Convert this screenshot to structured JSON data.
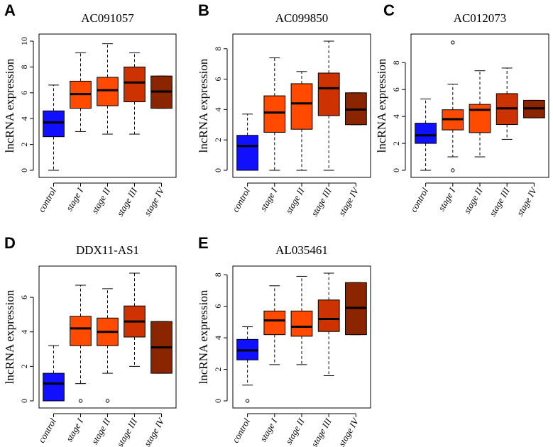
{
  "chart_data": [
    {
      "type": "box",
      "panel": "A",
      "title": "AC091057",
      "ylabel": "lncRNA expression",
      "xlabel": "",
      "ylim": [
        0,
        10
      ],
      "yticks": [
        0,
        2,
        4,
        6,
        8,
        10
      ],
      "categories": [
        "control",
        "stage I",
        "stage II",
        "stage III",
        "stage IV"
      ],
      "colors": [
        "#1010ff",
        "#ff4a00",
        "#ff4a00",
        "#cc3300",
        "#8b2500"
      ],
      "boxes": [
        {
          "min": 0.0,
          "q1": 2.6,
          "median": 3.7,
          "q3": 4.6,
          "max": 6.6,
          "outliers": []
        },
        {
          "min": 3.0,
          "q1": 4.8,
          "median": 5.9,
          "q3": 6.9,
          "max": 9.1,
          "outliers": []
        },
        {
          "min": 2.8,
          "q1": 5.0,
          "median": 6.2,
          "q3": 7.2,
          "max": 9.8,
          "outliers": []
        },
        {
          "min": 2.8,
          "q1": 5.3,
          "median": 6.8,
          "q3": 8.0,
          "max": 9.1,
          "outliers": []
        },
        {
          "min": 4.8,
          "q1": 4.8,
          "median": 6.1,
          "q3": 7.3,
          "max": 7.3,
          "outliers": []
        }
      ]
    },
    {
      "type": "box",
      "panel": "B",
      "title": "AC099850",
      "ylabel": "lncRNA expression",
      "xlabel": "",
      "ylim": [
        0,
        8.5
      ],
      "yticks": [
        0,
        2,
        4,
        6,
        8
      ],
      "categories": [
        "control",
        "stage I",
        "stage II",
        "stage III",
        "stage IV"
      ],
      "colors": [
        "#1010ff",
        "#ff4a00",
        "#ff4a00",
        "#cc3300",
        "#8b2500"
      ],
      "boxes": [
        {
          "min": 0.0,
          "q1": 0.0,
          "median": 1.6,
          "q3": 2.3,
          "max": 3.7,
          "outliers": []
        },
        {
          "min": 0.0,
          "q1": 2.5,
          "median": 3.8,
          "q3": 4.9,
          "max": 7.4,
          "outliers": []
        },
        {
          "min": 0.0,
          "q1": 2.7,
          "median": 4.4,
          "q3": 5.7,
          "max": 6.5,
          "outliers": []
        },
        {
          "min": 0.0,
          "q1": 3.6,
          "median": 5.4,
          "q3": 6.4,
          "max": 8.5,
          "outliers": []
        },
        {
          "min": 3.0,
          "q1": 3.0,
          "median": 4.0,
          "q3": 5.1,
          "max": 5.1,
          "outliers": []
        }
      ]
    },
    {
      "type": "box",
      "panel": "C",
      "title": "AC012073",
      "ylabel": "lncRNA expression",
      "xlabel": "",
      "ylim": [
        0,
        9.6
      ],
      "yticks": [
        0,
        2,
        4,
        6,
        8
      ],
      "categories": [
        "control",
        "stage I",
        "stage II",
        "stage III",
        "stage IV"
      ],
      "colors": [
        "#1010ff",
        "#ff4a00",
        "#ff4a00",
        "#cc3300",
        "#8b2500"
      ],
      "boxes": [
        {
          "min": 0.0,
          "q1": 2.0,
          "median": 2.6,
          "q3": 3.5,
          "max": 5.3,
          "outliers": []
        },
        {
          "min": 1.0,
          "q1": 3.0,
          "median": 3.8,
          "q3": 4.5,
          "max": 6.4,
          "outliers": [
            0.0,
            9.5
          ]
        },
        {
          "min": 1.0,
          "q1": 2.8,
          "median": 4.5,
          "q3": 4.9,
          "max": 7.4,
          "outliers": []
        },
        {
          "min": 2.3,
          "q1": 3.4,
          "median": 4.6,
          "q3": 5.7,
          "max": 7.6,
          "outliers": []
        },
        {
          "min": 3.9,
          "q1": 3.9,
          "median": 4.6,
          "q3": 5.2,
          "max": 5.2,
          "outliers": []
        }
      ]
    },
    {
      "type": "box",
      "panel": "D",
      "title": "DDX11-AS1",
      "ylabel": "lncRNA expression",
      "xlabel": "",
      "ylim": [
        0,
        7.4
      ],
      "yticks": [
        0,
        2,
        4,
        6
      ],
      "categories": [
        "control",
        "stage I",
        "stage II",
        "stage III",
        "stage IV"
      ],
      "colors": [
        "#1010ff",
        "#ff4a00",
        "#ff4a00",
        "#cc3300",
        "#8b2500"
      ],
      "boxes": [
        {
          "min": 0.0,
          "q1": 0.0,
          "median": 1.0,
          "q3": 1.6,
          "max": 3.2,
          "outliers": []
        },
        {
          "min": 1.0,
          "q1": 3.2,
          "median": 4.2,
          "q3": 4.9,
          "max": 6.7,
          "outliers": [
            0.0
          ]
        },
        {
          "min": 1.6,
          "q1": 3.2,
          "median": 4.0,
          "q3": 4.8,
          "max": 6.5,
          "outliers": [
            0.0
          ]
        },
        {
          "min": 2.0,
          "q1": 3.7,
          "median": 4.6,
          "q3": 5.5,
          "max": 7.4,
          "outliers": []
        },
        {
          "min": 1.6,
          "q1": 1.6,
          "median": 3.1,
          "q3": 4.6,
          "max": 4.6,
          "outliers": []
        }
      ]
    },
    {
      "type": "box",
      "panel": "E",
      "title": "AL035461",
      "ylabel": "lncRNA expression",
      "xlabel": "",
      "ylim": [
        0,
        8.1
      ],
      "yticks": [
        0,
        2,
        4,
        6,
        8
      ],
      "categories": [
        "control",
        "stage I",
        "stage II",
        "stage III",
        "stage IV"
      ],
      "colors": [
        "#1010ff",
        "#ff4a00",
        "#ff4a00",
        "#cc3300",
        "#8b2500"
      ],
      "boxes": [
        {
          "min": 1.0,
          "q1": 2.6,
          "median": 3.2,
          "q3": 3.9,
          "max": 4.7,
          "outliers": [
            0.0
          ]
        },
        {
          "min": 2.3,
          "q1": 4.2,
          "median": 5.1,
          "q3": 5.7,
          "max": 7.3,
          "outliers": []
        },
        {
          "min": 2.3,
          "q1": 4.1,
          "median": 4.7,
          "q3": 5.7,
          "max": 7.9,
          "outliers": []
        },
        {
          "min": 1.6,
          "q1": 4.4,
          "median": 5.2,
          "q3": 6.4,
          "max": 8.1,
          "outliers": []
        },
        {
          "min": 4.2,
          "q1": 4.2,
          "median": 5.9,
          "q3": 7.5,
          "max": 7.5,
          "outliers": []
        }
      ]
    }
  ]
}
